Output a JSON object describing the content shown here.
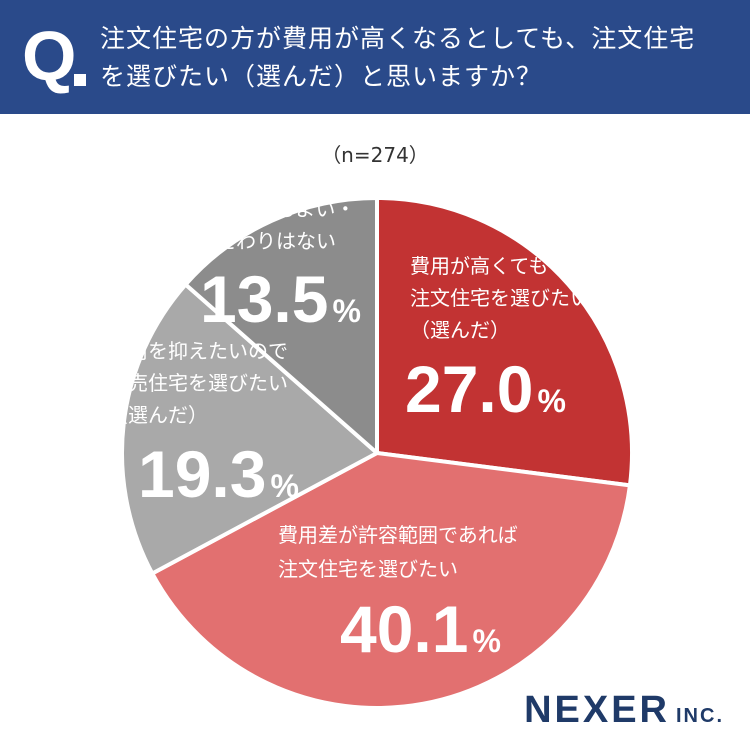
{
  "question": {
    "mark": "Q",
    "line1": "注文住宅の方が費用が高くなるとしても、注文住宅",
    "line2": "を選びたい（選んだ）と思いますか？"
  },
  "sample_size": "（n=274）",
  "colors": {
    "header": "#2a4a8a",
    "slice_1": "#c23333",
    "slice_2": "#e27070",
    "slice_3": "#a9a9a9",
    "slice_4": "#8c8c8c"
  },
  "chart_data": {
    "type": "pie",
    "start": "12 o'clock",
    "direction": "clockwise",
    "slices": [
      {
        "label_lines": [
          "費用が高くても",
          "注文住宅を選びたい",
          "（選んだ）"
        ],
        "value": 27.0,
        "display": "27.0",
        "color": "#c23333"
      },
      {
        "label_lines": [
          "費用差が許容範囲であれば",
          "注文住宅を選びたい"
        ],
        "value": 40.1,
        "display": "40.1",
        "color": "#e27070"
      },
      {
        "label_lines": [
          "費用を抑えたいので",
          "建売住宅を選びたい",
          "（選んだ）"
        ],
        "value": 19.3,
        "display": "19.3",
        "color": "#a9a9a9"
      },
      {
        "label_lines": [
          "どちらでもよい・",
          "こだわりはない"
        ],
        "value": 13.5,
        "display": "13.5",
        "color": "#8c8c8c"
      }
    ],
    "percent_sign": "%"
  },
  "logo": {
    "main": "NEXER",
    "suffix": "INC."
  }
}
